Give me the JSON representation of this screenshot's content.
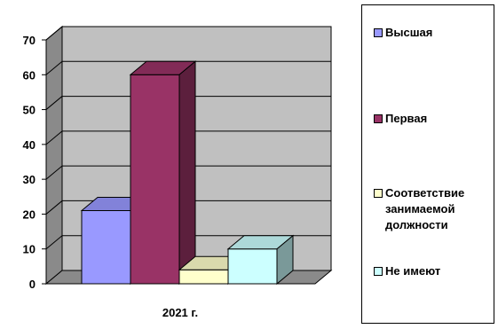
{
  "chart_data": {
    "type": "bar",
    "three_d": true,
    "categories": [
      "2021 г."
    ],
    "series": [
      {
        "name": "Высшая",
        "values": [
          21
        ],
        "color": "#9999ff"
      },
      {
        "name": "Первая",
        "values": [
          60
        ],
        "color": "#993366"
      },
      {
        "name": "Соответствие занимаемой должности",
        "values": [
          4
        ],
        "color": "#ffffcc"
      },
      {
        "name": "Не имеют",
        "values": [
          10
        ],
        "color": "#ccffff"
      }
    ],
    "ylim": [
      0,
      70
    ],
    "yticks": [
      "0",
      "10",
      "20",
      "30",
      "40",
      "50",
      "60",
      "70"
    ],
    "grid": true,
    "wall_color": "#c0c0c0",
    "legend_position": "right"
  },
  "legend": {
    "items": [
      {
        "label_lines": [
          "Высшая"
        ]
      },
      {
        "label_lines": [
          "Первая"
        ]
      },
      {
        "label_lines": [
          "Соответствие",
          "занимаемой",
          "должности"
        ]
      },
      {
        "label_lines": [
          "Не имеют"
        ]
      }
    ]
  }
}
